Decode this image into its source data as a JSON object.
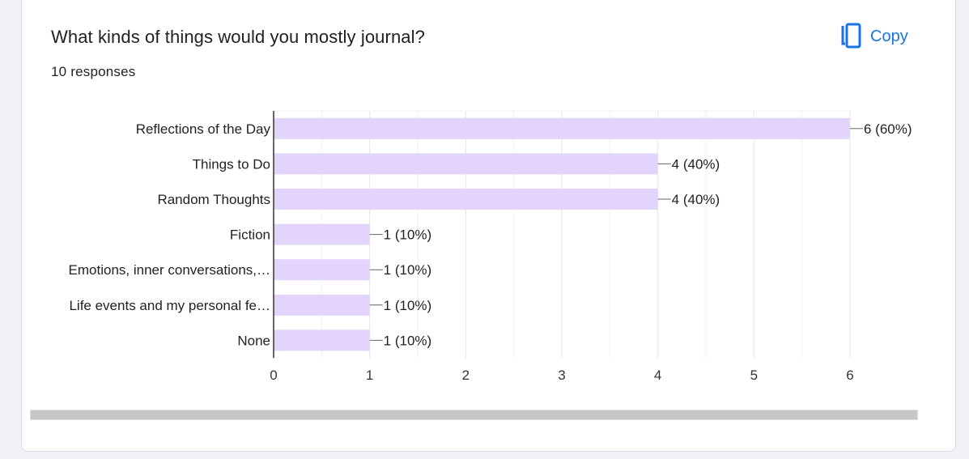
{
  "card": {
    "title": "What kinds of things would you mostly journal?",
    "response_count": "10 responses",
    "copy_label": "Copy"
  },
  "colors": {
    "bar": "#e2d4fb",
    "bar_outline": "#c9b3f5",
    "accent": "#1a73e8",
    "axis": "#333333",
    "grid": "#ebebeb"
  },
  "icons": {
    "copy": "copy-icon"
  },
  "chart_data": {
    "type": "bar",
    "orientation": "horizontal",
    "categories": [
      "Reflections of the Day",
      "Things to Do",
      "Random Thoughts",
      "Fiction",
      "Emotions, inner conversations,…",
      "Life events and my personal fe…",
      "None"
    ],
    "values": [
      6,
      4,
      4,
      1,
      1,
      1,
      1
    ],
    "labels": [
      "6 (60%)",
      "4 (40%)",
      "4 (40%)",
      "1 (10%)",
      "1 (10%)",
      "1 (10%)",
      "1 (10%)"
    ],
    "xlim": [
      0,
      6
    ],
    "xticks": [
      0,
      1,
      2,
      3,
      4,
      5,
      6
    ],
    "grid": true,
    "legend": "none"
  }
}
